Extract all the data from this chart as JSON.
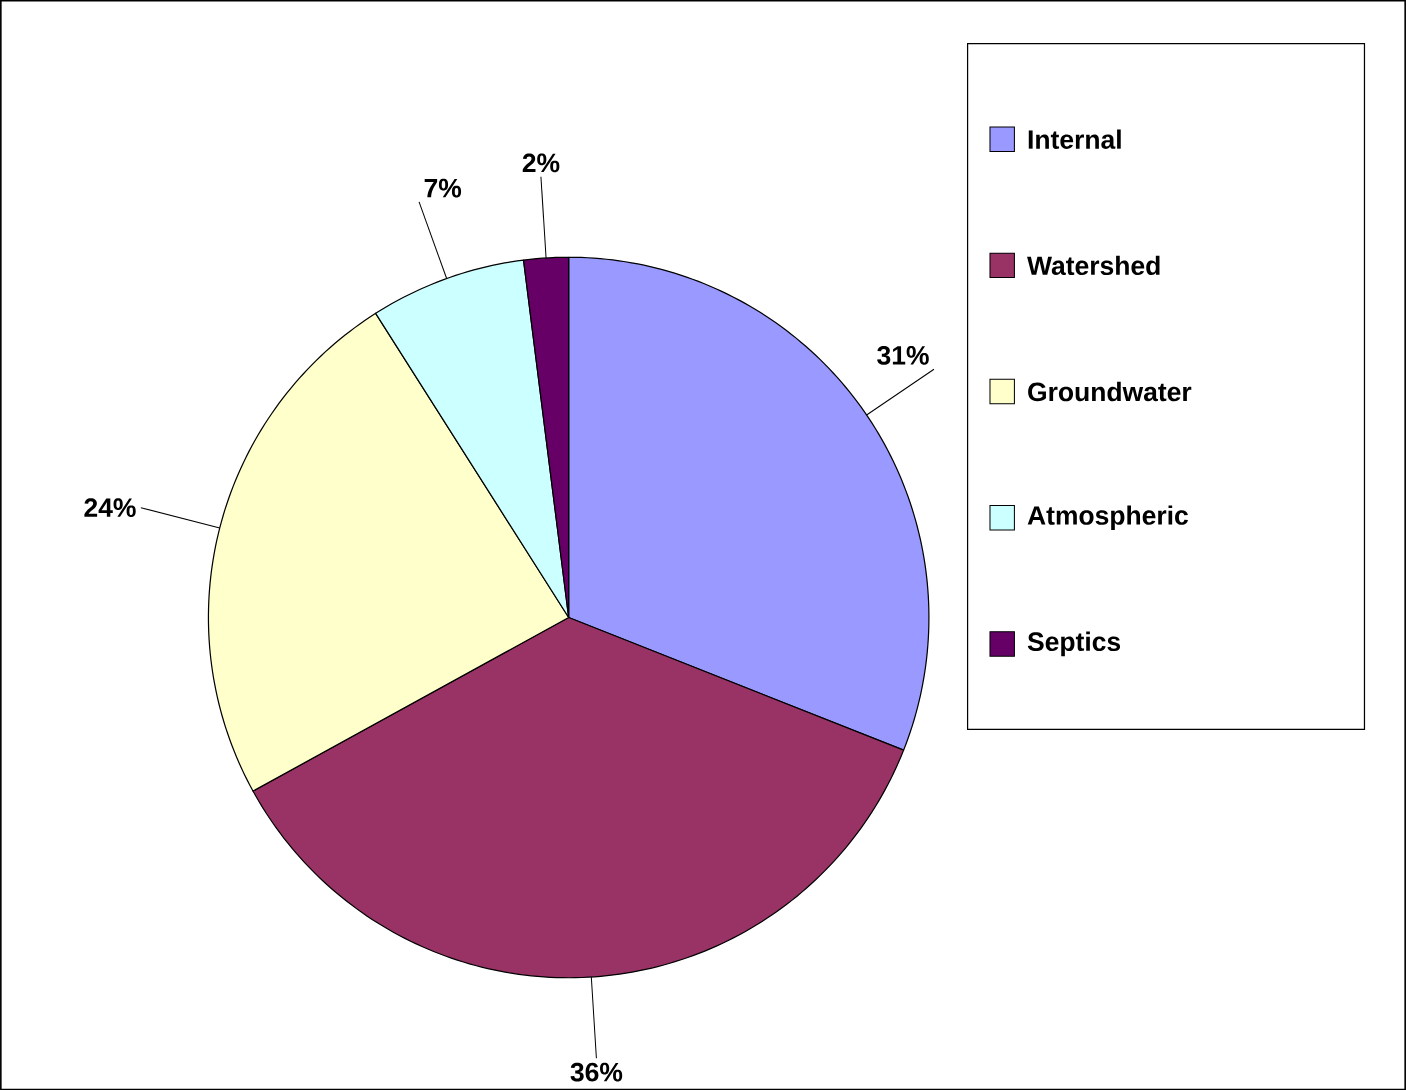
{
  "chart_data": {
    "type": "pie",
    "categories": [
      "Internal",
      "Watershed",
      "Groundwater",
      "Atmospheric",
      "Septics"
    ],
    "values": [
      31,
      36,
      24,
      7,
      2
    ],
    "colors": [
      "#9999ff",
      "#993366",
      "#ffffcc",
      "#ccffff",
      "#660066"
    ],
    "value_labels": [
      "31%",
      "36%",
      "24%",
      "7%",
      "2%"
    ],
    "legend": "right"
  }
}
